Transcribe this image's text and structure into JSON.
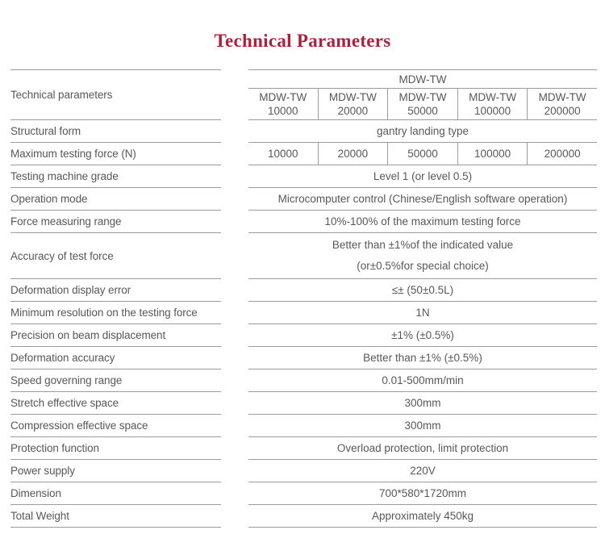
{
  "title": "Technical Parameters",
  "colors": {
    "accent": "#b01f3b",
    "text": "#585858",
    "line": "#9c9c9c"
  },
  "table": {
    "header": {
      "param_label": "Technical parameters",
      "group_label": "MDW-TW",
      "models": [
        {
          "name": "MDW-TW",
          "capacity": "10000"
        },
        {
          "name": "MDW-TW",
          "capacity": "20000"
        },
        {
          "name": "MDW-TW",
          "capacity": "50000"
        },
        {
          "name": "MDW-TW",
          "capacity": "100000"
        },
        {
          "name": "MDW-TW",
          "capacity": "200000"
        }
      ]
    },
    "rows": [
      {
        "label": "Structural form",
        "value": "gantry landing type"
      },
      {
        "label": "Maximum testing force (N)",
        "values": [
          "10000",
          "20000",
          "50000",
          "100000",
          "200000"
        ]
      },
      {
        "label": "Testing machine grade",
        "value": "Level 1 (or level 0.5)"
      },
      {
        "label": "Operation mode",
        "value": "Microcomputer control (Chinese/English software operation)"
      },
      {
        "label": "Force measuring range",
        "value": "10%-100% of the maximum testing force"
      },
      {
        "label": "Accuracy of test force",
        "value_lines": [
          "Better than ±1%of the indicated value",
          "(or±0.5%for special choice)"
        ]
      },
      {
        "label": "Deformation display error",
        "value": "≤± (50±0.5L)"
      },
      {
        "label": "Minimum resolution on the testing force",
        "value": "1N"
      },
      {
        "label": "Precision on beam displacement",
        "value": "±1% (±0.5%)"
      },
      {
        "label": "Deformation accuracy",
        "value": "Better than ±1% (±0.5%)"
      },
      {
        "label": "Speed governing range",
        "value": "0.01-500mm/min"
      },
      {
        "label": "Stretch effective space",
        "value": "300mm"
      },
      {
        "label": "Compression effective space",
        "value": "300mm"
      },
      {
        "label": "Protection function",
        "value": "Overload protection, limit protection"
      },
      {
        "label": "Power supply",
        "value": "220V"
      },
      {
        "label": "Dimension",
        "value": "700*580*1720mm"
      },
      {
        "label": "Total Weight",
        "value": "Approximately 450kg"
      }
    ]
  }
}
